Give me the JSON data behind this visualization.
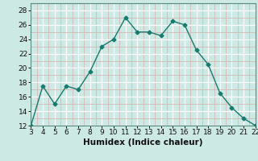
{
  "x": [
    3,
    4,
    5,
    6,
    7,
    8,
    9,
    10,
    11,
    12,
    13,
    14,
    15,
    16,
    17,
    18,
    19,
    20,
    21,
    22
  ],
  "y": [
    12,
    17.5,
    15,
    17.5,
    17,
    19.5,
    23,
    24,
    27,
    25,
    25,
    24.5,
    26.5,
    26,
    22.5,
    20.5,
    16.5,
    14.5,
    13,
    12
  ],
  "line_color": "#1a7a6e",
  "marker": "D",
  "marker_size": 2.5,
  "bg_color": "#cce9e4",
  "grid_color_major": "#ffffff",
  "grid_color_minor": "#d4b8b8",
  "xlabel": "Humidex (Indice chaleur)",
  "ylim": [
    12,
    29
  ],
  "xlim": [
    3,
    22
  ],
  "yticks": [
    12,
    14,
    16,
    18,
    20,
    22,
    24,
    26,
    28
  ],
  "xticks": [
    3,
    4,
    5,
    6,
    7,
    8,
    9,
    10,
    11,
    12,
    13,
    14,
    15,
    16,
    17,
    18,
    19,
    20,
    21,
    22
  ],
  "xlabel_fontsize": 7.5,
  "tick_labelsize": 6.5
}
